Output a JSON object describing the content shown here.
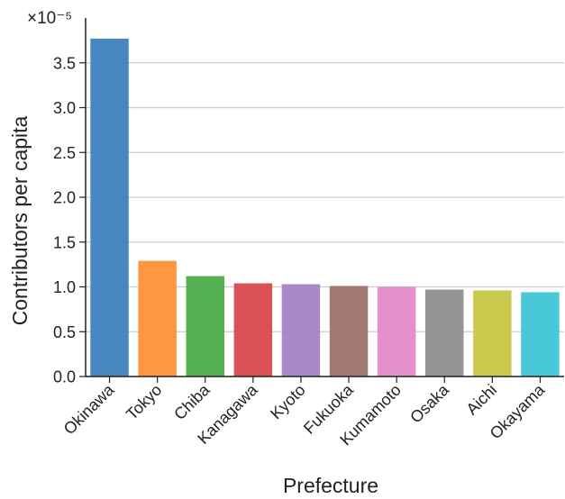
{
  "chart_data": {
    "type": "bar",
    "title": "",
    "xlabel": "Prefecture",
    "ylabel": "Contributors per capita",
    "y_scale_label": "×10⁻⁵",
    "y_scale_factor": 1e-05,
    "ylim": [
      0,
      4.0
    ],
    "yticks": [
      "0.0",
      "0.5",
      "1.0",
      "1.5",
      "2.0",
      "2.5",
      "3.0",
      "3.5"
    ],
    "grid": "horizontal",
    "categories": [
      "Okinawa",
      "Tokyo",
      "Chiba",
      "Kanagawa",
      "Kyoto",
      "Fukuoka",
      "Kumamoto",
      "Osaka",
      "Aichi",
      "Okayama"
    ],
    "values": [
      3.77,
      1.29,
      1.12,
      1.04,
      1.03,
      1.01,
      1.0,
      0.97,
      0.96,
      0.94
    ],
    "colors": [
      "#3e82bd",
      "#ff9138",
      "#4cae4b",
      "#d8494b",
      "#a583c6",
      "#a0726b",
      "#e58ac8",
      "#8f8f8f",
      "#c7c744",
      "#3fc6d5"
    ]
  }
}
